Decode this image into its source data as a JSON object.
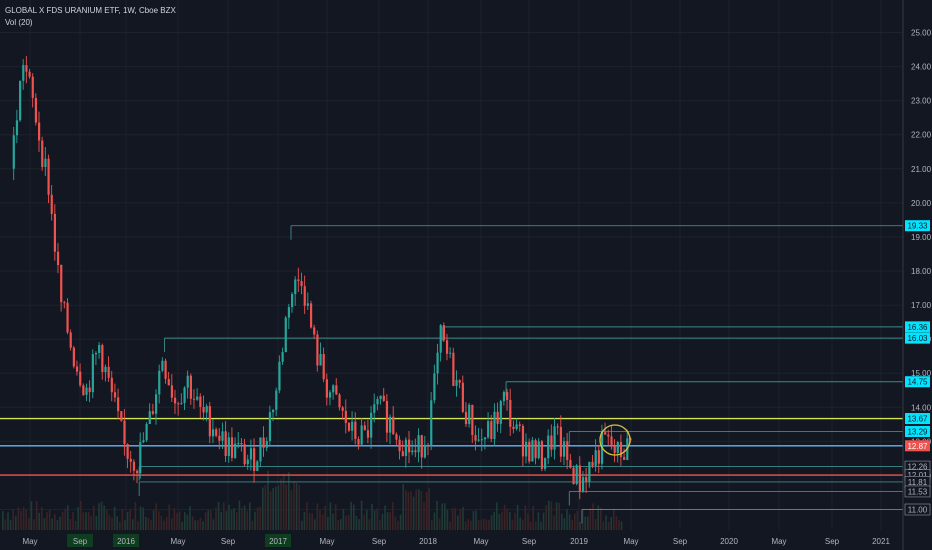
{
  "header": {
    "title": "GLOBAL X FDS URANIUM ETF, 1W, Cboe BZX",
    "volume_label": "Vol (20)"
  },
  "colors": {
    "background": "#131722",
    "up": "#26a69a",
    "down": "#ef5350",
    "cyan_level": "#00e5ff",
    "yellow_line": "#d4e157",
    "blue_line": "#64b5f6",
    "red_line": "#ef5350",
    "circle": "#d4c43c"
  },
  "chart_data": {
    "type": "candlestick",
    "title": "GLOBAL X FDS URANIUM ETF, 1W, Cboe BZX",
    "ylim": [
      11,
      25.4
    ],
    "y_ticks": [
      "25.00",
      "24.00",
      "23.00",
      "22.00",
      "21.00",
      "20.00",
      "19.00",
      "18.00",
      "17.00",
      "16.00",
      "15.00",
      "14.00",
      "13.00",
      "12.00",
      "11.00"
    ],
    "x_ticks": [
      "May",
      "Sep",
      "2016",
      "May",
      "Sep",
      "2017",
      "May",
      "Sep",
      "2018",
      "May",
      "Sep",
      "2019",
      "May",
      "Sep",
      "2020",
      "May",
      "Sep",
      "2021"
    ],
    "highlighted_x_ticks": [
      "Sep",
      "2016",
      "2017"
    ],
    "price_badges": [
      {
        "label": "19.33",
        "value": 19.33,
        "kind": "cyan"
      },
      {
        "label": "16.36",
        "value": 16.36,
        "kind": "cyan"
      },
      {
        "label": "16.03",
        "value": 16.03,
        "kind": "cyan"
      },
      {
        "label": "14.75",
        "value": 14.75,
        "kind": "cyan"
      },
      {
        "label": "13.67",
        "value": 13.67,
        "kind": "cyan"
      },
      {
        "label": "13.29",
        "value": 13.29,
        "kind": "cyan"
      },
      {
        "label": "12.87",
        "value": 12.87,
        "kind": "red"
      },
      {
        "label": "12.26",
        "value": 12.26,
        "kind": "plain"
      },
      {
        "label": "12.01",
        "value": 12.01,
        "kind": "plain"
      },
      {
        "label": "11.81",
        "value": 11.81,
        "kind": "plain"
      },
      {
        "label": "11.53",
        "value": 11.53,
        "kind": "plain"
      },
      {
        "label": "11.00",
        "value": 11.0,
        "kind": "plain"
      }
    ],
    "horizontal_lines": [
      {
        "name": "yellow-support-line",
        "value": 13.67,
        "color": "#d4e157"
      },
      {
        "name": "blue-price-line",
        "value": 12.87,
        "color": "#64b5f6"
      },
      {
        "name": "red-support-line",
        "value": 12.01,
        "color": "#ef5350"
      }
    ],
    "level_boxes": [
      {
        "value": 19.33,
        "start": "2017-01"
      },
      {
        "value": 16.36,
        "start": "2018-01"
      },
      {
        "value": 16.03,
        "start": "2016-03"
      },
      {
        "value": 14.75,
        "start": "2018-06"
      },
      {
        "value": 13.29,
        "start": "2018-11"
      },
      {
        "value": 12.26,
        "start": "2016-01"
      },
      {
        "value": 11.81,
        "start": "2016-01"
      },
      {
        "value": 11.53,
        "start": "2018-11"
      },
      {
        "value": 11.0,
        "start": "2018-12"
      }
    ],
    "price_series": [
      {
        "x": "2015-03",
        "close": 21.0
      },
      {
        "x": "2015-04",
        "close": 24.2
      },
      {
        "x": "2015-05",
        "close": 22.5
      },
      {
        "x": "2015-06",
        "close": 20.5
      },
      {
        "x": "2015-07",
        "close": 17.0
      },
      {
        "x": "2015-08",
        "close": 15.5
      },
      {
        "x": "2015-09",
        "close": 14.5
      },
      {
        "x": "2015-10",
        "close": 15.8
      },
      {
        "x": "2015-11",
        "close": 14.3
      },
      {
        "x": "2015-12",
        "close": 12.8
      },
      {
        "x": "2016-01",
        "close": 12.4
      },
      {
        "x": "2016-02",
        "close": 13.6
      },
      {
        "x": "2016-03",
        "close": 15.5
      },
      {
        "x": "2016-04",
        "close": 14.2
      },
      {
        "x": "2016-05",
        "close": 14.8
      },
      {
        "x": "2016-06",
        "close": 13.8
      },
      {
        "x": "2016-07",
        "close": 13.5
      },
      {
        "x": "2016-08",
        "close": 12.9
      },
      {
        "x": "2016-09",
        "close": 12.7
      },
      {
        "x": "2016-10",
        "close": 12.4
      },
      {
        "x": "2016-11",
        "close": 13.0
      },
      {
        "x": "2016-12",
        "close": 14.5
      },
      {
        "x": "2017-01",
        "close": 17.2
      },
      {
        "x": "2017-02",
        "close": 17.9
      },
      {
        "x": "2017-03",
        "close": 15.8
      },
      {
        "x": "2017-04",
        "close": 14.6
      },
      {
        "x": "2017-05",
        "close": 13.9
      },
      {
        "x": "2017-06",
        "close": 13.2
      },
      {
        "x": "2017-07",
        "close": 13.1
      },
      {
        "x": "2017-08",
        "close": 14.0
      },
      {
        "x": "2017-09",
        "close": 13.6
      },
      {
        "x": "2017-10",
        "close": 13.0
      },
      {
        "x": "2017-11",
        "close": 12.6
      },
      {
        "x": "2017-12",
        "close": 13.3
      },
      {
        "x": "2018-01",
        "close": 16.0
      },
      {
        "x": "2018-02",
        "close": 15.0
      },
      {
        "x": "2018-03",
        "close": 13.9
      },
      {
        "x": "2018-04",
        "close": 13.0
      },
      {
        "x": "2018-05",
        "close": 13.3
      },
      {
        "x": "2018-06",
        "close": 14.2
      },
      {
        "x": "2018-07",
        "close": 13.2
      },
      {
        "x": "2018-08",
        "close": 12.8
      },
      {
        "x": "2018-09",
        "close": 12.5
      },
      {
        "x": "2018-10",
        "close": 13.2
      },
      {
        "x": "2018-11",
        "close": 12.4
      },
      {
        "x": "2018-12",
        "close": 11.8
      },
      {
        "x": "2019-01",
        "close": 12.4
      },
      {
        "x": "2019-02",
        "close": 13.0
      },
      {
        "x": "2019-03",
        "close": 12.6
      },
      {
        "x": "2019-04",
        "close": 12.9
      }
    ]
  }
}
